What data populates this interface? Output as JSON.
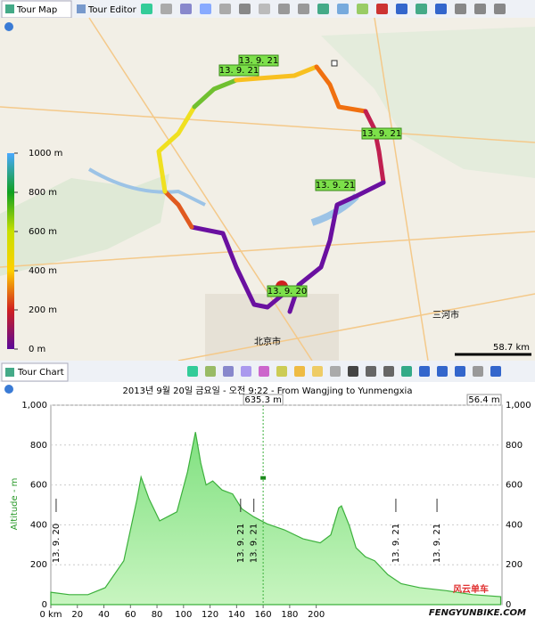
{
  "map_tabs": [
    "Tour Map",
    "Tour Editor"
  ],
  "map": {
    "legend_ticks": [
      {
        "value": 1000,
        "label": "1000 m"
      },
      {
        "value": 800,
        "label": "800 m"
      },
      {
        "value": 600,
        "label": "600 m"
      },
      {
        "value": 400,
        "label": "400 m"
      },
      {
        "value": 200,
        "label": "200 m"
      },
      {
        "value": 0,
        "label": "0 m"
      }
    ],
    "legend_range": [
      0,
      1000
    ],
    "markers": [
      "13. 9. 21",
      "13. 9. 21",
      "13. 9. 21",
      "13. 9. 21",
      "13. 9. 21",
      "13. 9. 20"
    ],
    "places": [
      "北京市",
      "三河市"
    ],
    "scale_label": "58.7 km"
  },
  "chart_tab": "Tour Chart",
  "chart": {
    "title": "2013년 9월 20일 금요일 - 오전 9:22 - From Wangjing to Yunmengxia",
    "y_label": "Altitude - m",
    "right_label": "56.4 m",
    "cursor": {
      "x": 160,
      "value": 635.3,
      "label": "635.3 m"
    },
    "xlim": [
      0,
      340
    ],
    "ylim": [
      0,
      1000
    ],
    "xticks": [
      {
        "value": 0,
        "label": "0 km"
      },
      20,
      40,
      60,
      80,
      100,
      120,
      140,
      160,
      180,
      200
    ],
    "yticks": [
      0,
      200,
      400,
      600,
      800,
      {
        "value": 1000,
        "label": "1,000"
      }
    ],
    "x": [
      0,
      14,
      28,
      41,
      55,
      65,
      68,
      74,
      82,
      95,
      103,
      109,
      113,
      117,
      122,
      129,
      137,
      144,
      153,
      163,
      176,
      190,
      203,
      211,
      217,
      219,
      225,
      230,
      237,
      244,
      254,
      264,
      278,
      298,
      318,
      339
    ],
    "values": [
      62,
      50,
      50,
      85,
      220,
      530,
      640,
      530,
      420,
      465,
      665,
      865,
      710,
      600,
      620,
      575,
      555,
      480,
      440,
      405,
      375,
      330,
      310,
      350,
      485,
      495,
      395,
      285,
      240,
      220,
      150,
      105,
      85,
      70,
      50,
      40
    ],
    "markers": [
      {
        "x": 4,
        "label": "13. 9. 20"
      },
      {
        "x": 143,
        "label": "13. 9. 21"
      },
      {
        "x": 153,
        "label": "13. 9. 21"
      },
      {
        "x": 260,
        "label": "13. 9. 21"
      },
      {
        "x": 291,
        "label": "13. 9. 21"
      }
    ]
  },
  "watermark": {
    "cn": "风云单车",
    "en": "FENGYUNBIKE.COM"
  }
}
